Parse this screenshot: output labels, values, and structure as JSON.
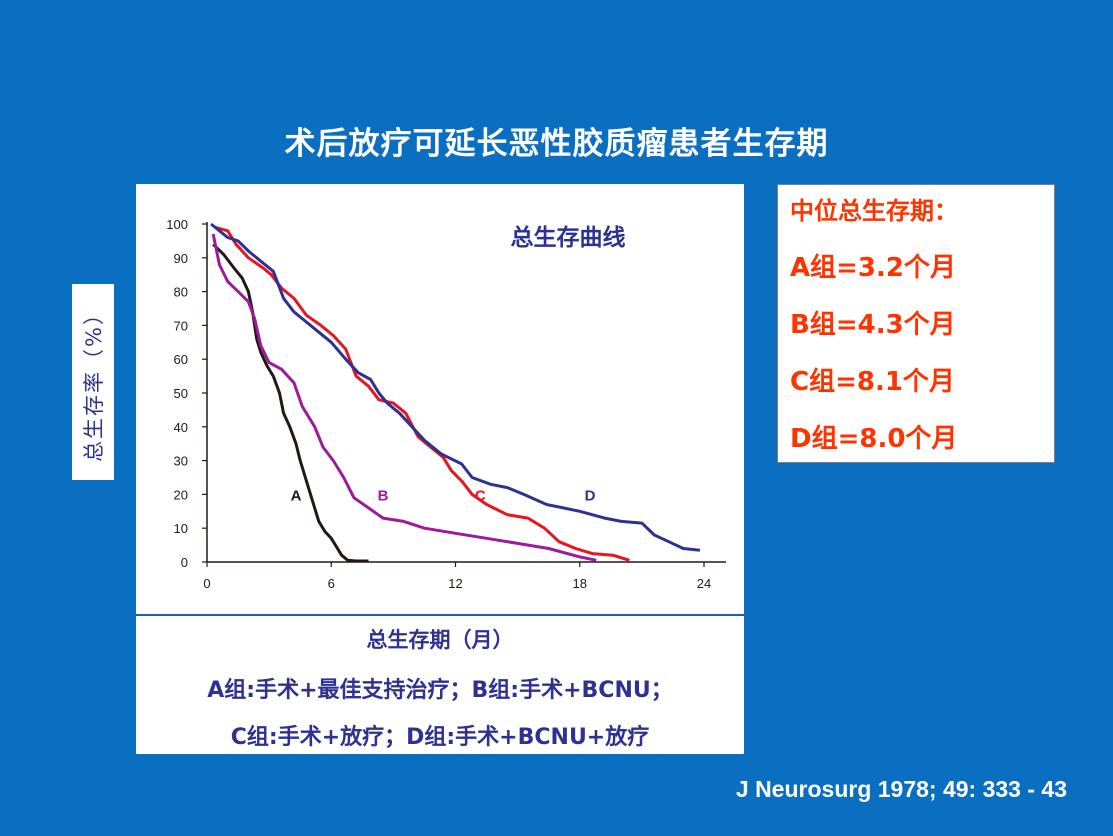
{
  "slide": {
    "title": "术后放疗可延长恶性胶质瘤患者生存期",
    "citation": "J Neurosurg 1978; 49: 333 - 43",
    "background_color": "#0a6fc0",
    "legend_line_1": "A组:手术+最佳支持治疗；B组:手术+BCNU；",
    "legend_line_2": "C组:手术+放疗；D组:手术+BCNU+放疗"
  },
  "median_box": {
    "title": "中位总生存期：",
    "items": [
      "A组=3.2个月",
      "B组=4.3个月",
      "C组=8.1个月",
      "D组=8.0个月"
    ],
    "color": "#ff3300"
  },
  "chart_data": {
    "type": "line",
    "title": "总生存曲线",
    "xlabel": "总生存期（月）",
    "ylabel": "总生存率（%）",
    "xlim": [
      0,
      24
    ],
    "ylim": [
      0,
      100
    ],
    "xticks": [
      0,
      6,
      12,
      18,
      24
    ],
    "yticks": [
      0,
      10,
      20,
      30,
      40,
      50,
      60,
      70,
      80,
      90,
      100
    ],
    "grid": false,
    "series": [
      {
        "name": "A",
        "color": "#231815",
        "label_at": [
          4.3,
          20
        ],
        "points": [
          [
            0.3,
            94
          ],
          [
            0.8,
            91
          ],
          [
            1.3,
            87
          ],
          [
            1.7,
            84
          ],
          [
            2.0,
            80
          ],
          [
            2.2,
            74
          ],
          [
            2.4,
            66
          ],
          [
            2.6,
            62
          ],
          [
            2.9,
            58
          ],
          [
            3.2,
            55
          ],
          [
            3.5,
            50
          ],
          [
            3.7,
            44
          ],
          [
            4.0,
            40
          ],
          [
            4.3,
            35
          ],
          [
            4.5,
            30
          ],
          [
            4.8,
            24
          ],
          [
            5.1,
            18
          ],
          [
            5.4,
            12
          ],
          [
            5.7,
            9
          ],
          [
            6.0,
            7
          ],
          [
            6.3,
            4
          ],
          [
            6.5,
            2
          ],
          [
            6.8,
            0.5
          ],
          [
            7.2,
            0.3
          ],
          [
            7.8,
            0.3
          ]
        ]
      },
      {
        "name": "B",
        "color": "#9b1b9b",
        "label_at": [
          8.5,
          20
        ],
        "points": [
          [
            0.3,
            97
          ],
          [
            0.6,
            88
          ],
          [
            1.0,
            83
          ],
          [
            1.5,
            80
          ],
          [
            2.0,
            77
          ],
          [
            2.3,
            72
          ],
          [
            2.6,
            64
          ],
          [
            3.0,
            59
          ],
          [
            3.6,
            57
          ],
          [
            4.2,
            53
          ],
          [
            4.6,
            46
          ],
          [
            5.2,
            40
          ],
          [
            5.6,
            34
          ],
          [
            6.1,
            30
          ],
          [
            6.6,
            25
          ],
          [
            7.1,
            19
          ],
          [
            7.8,
            16
          ],
          [
            8.5,
            13
          ],
          [
            9.5,
            12
          ],
          [
            10.5,
            10
          ],
          [
            12.0,
            8.5
          ],
          [
            13.5,
            7
          ],
          [
            15.0,
            5.5
          ],
          [
            16.5,
            4
          ],
          [
            18.0,
            1.5
          ],
          [
            18.8,
            0.5
          ]
        ]
      },
      {
        "name": "C",
        "color": "#e8141e",
        "label_at": [
          13.2,
          20
        ],
        "points": [
          [
            0.4,
            99
          ],
          [
            1.0,
            98
          ],
          [
            1.4,
            94
          ],
          [
            2.0,
            90
          ],
          [
            2.7,
            87
          ],
          [
            3.1,
            85
          ],
          [
            3.6,
            81
          ],
          [
            4.2,
            78
          ],
          [
            4.8,
            73
          ],
          [
            5.5,
            70
          ],
          [
            6.1,
            67
          ],
          [
            6.7,
            63
          ],
          [
            7.2,
            55
          ],
          [
            7.8,
            52
          ],
          [
            8.3,
            48
          ],
          [
            9.0,
            47
          ],
          [
            9.6,
            44
          ],
          [
            10.2,
            37
          ],
          [
            10.8,
            34
          ],
          [
            11.4,
            31
          ],
          [
            11.8,
            27
          ],
          [
            12.3,
            24
          ],
          [
            12.8,
            20
          ],
          [
            13.5,
            17
          ],
          [
            14.5,
            14
          ],
          [
            15.5,
            13
          ],
          [
            16.3,
            10
          ],
          [
            17.0,
            6
          ],
          [
            17.8,
            4
          ],
          [
            18.6,
            2.5
          ],
          [
            19.6,
            2
          ],
          [
            20.4,
            0.5
          ]
        ]
      },
      {
        "name": "D",
        "color": "#2e3192",
        "label_at": [
          18.5,
          20
        ],
        "points": [
          [
            0.2,
            100
          ],
          [
            0.6,
            98
          ],
          [
            1.0,
            96
          ],
          [
            1.5,
            95
          ],
          [
            2.0,
            92
          ],
          [
            2.6,
            89
          ],
          [
            3.2,
            86
          ],
          [
            3.7,
            78
          ],
          [
            4.2,
            74
          ],
          [
            4.8,
            71
          ],
          [
            5.4,
            68
          ],
          [
            6.0,
            65
          ],
          [
            6.7,
            60
          ],
          [
            7.3,
            56
          ],
          [
            7.9,
            54
          ],
          [
            8.3,
            50
          ],
          [
            8.7,
            47
          ],
          [
            9.3,
            44
          ],
          [
            9.9,
            40
          ],
          [
            10.5,
            36
          ],
          [
            11.3,
            32
          ],
          [
            12.3,
            29
          ],
          [
            12.8,
            25
          ],
          [
            13.7,
            23
          ],
          [
            14.5,
            22
          ],
          [
            15.3,
            20
          ],
          [
            16.4,
            17
          ],
          [
            17.2,
            16
          ],
          [
            18.0,
            15
          ],
          [
            19.2,
            13
          ],
          [
            20.0,
            12
          ],
          [
            21.0,
            11.5
          ],
          [
            21.6,
            8
          ],
          [
            22.3,
            6
          ],
          [
            23.0,
            4
          ],
          [
            23.8,
            3.5
          ]
        ]
      }
    ]
  }
}
